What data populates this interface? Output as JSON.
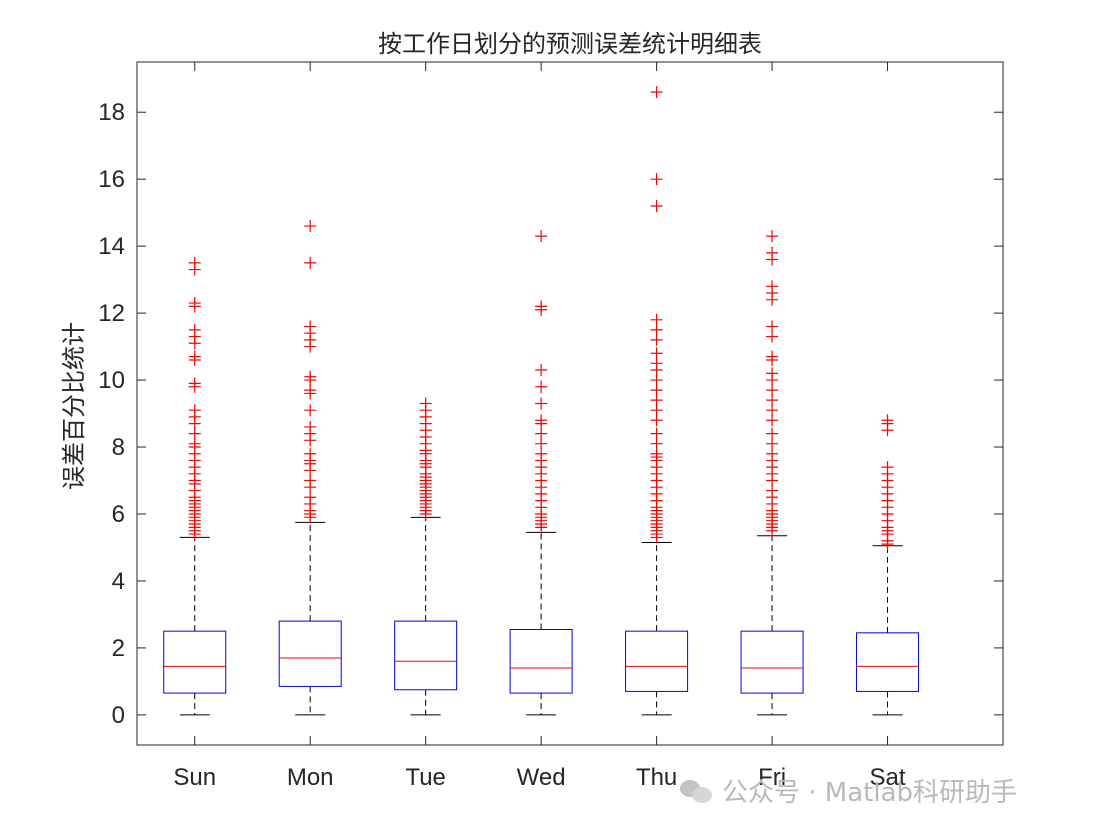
{
  "chart_data": {
    "type": "box",
    "title": "按工作日划分的预测误差统计明细表",
    "xlabel": "",
    "ylabel": "误差百分比统计",
    "ylim": [
      -0.9,
      19.5
    ],
    "yticks": [
      0,
      2,
      4,
      6,
      8,
      10,
      12,
      14,
      16,
      18
    ],
    "categories": [
      "Sun",
      "Mon",
      "Tue",
      "Wed",
      "Thu",
      "Fri",
      "Sat"
    ],
    "grid": false,
    "colors": {
      "box": "#0000ff",
      "median": "#ff0000",
      "whisker": "#000000",
      "outlier": "#ff0000",
      "axis": "#262626"
    },
    "boxes": [
      {
        "category": "Sun",
        "min": 0,
        "q1": 0.65,
        "median": 1.45,
        "q3": 2.5,
        "whisker_high": 5.3,
        "outliers": [
          5.4,
          5.5,
          5.6,
          5.7,
          5.8,
          5.9,
          6.0,
          6.1,
          6.2,
          6.3,
          6.4,
          6.5,
          6.7,
          6.9,
          7.0,
          7.2,
          7.4,
          7.6,
          7.8,
          8.0,
          8.1,
          8.4,
          8.7,
          8.9,
          9.1,
          9.8,
          9.9,
          10.6,
          10.7,
          11.1,
          11.3,
          11.5,
          12.2,
          12.3,
          13.3,
          13.5
        ]
      },
      {
        "category": "Mon",
        "min": 0,
        "q1": 0.85,
        "median": 1.7,
        "q3": 2.8,
        "whisker_high": 5.75,
        "outliers": [
          5.9,
          6.0,
          6.1,
          6.3,
          6.5,
          6.8,
          7.0,
          7.3,
          7.5,
          7.6,
          7.8,
          8.2,
          8.4,
          8.6,
          9.1,
          9.6,
          9.7,
          10.0,
          10.1,
          11.0,
          11.2,
          11.4,
          11.6,
          13.5,
          14.6
        ]
      },
      {
        "category": "Tue",
        "min": 0,
        "q1": 0.75,
        "median": 1.6,
        "q3": 2.8,
        "whisker_high": 5.9,
        "outliers": [
          6.0,
          6.1,
          6.2,
          6.3,
          6.4,
          6.5,
          6.6,
          6.7,
          6.8,
          6.9,
          7.0,
          7.1,
          7.2,
          7.4,
          7.5,
          7.6,
          7.8,
          7.9,
          8.1,
          8.3,
          8.5,
          8.7,
          8.9,
          9.1,
          9.3
        ]
      },
      {
        "category": "Wed",
        "min": 0,
        "q1": 0.65,
        "median": 1.4,
        "q3": 2.55,
        "whisker_high": 5.45,
        "outliers": [
          5.6,
          5.7,
          5.8,
          5.9,
          6.0,
          6.2,
          6.4,
          6.6,
          6.8,
          7.0,
          7.2,
          7.4,
          7.6,
          7.8,
          8.1,
          8.4,
          8.7,
          8.8,
          9.3,
          9.8,
          10.3,
          12.1,
          12.2,
          14.3
        ]
      },
      {
        "category": "Thu",
        "min": 0,
        "q1": 0.7,
        "median": 1.45,
        "q3": 2.5,
        "whisker_high": 5.15,
        "outliers": [
          5.3,
          5.4,
          5.5,
          5.6,
          5.7,
          5.8,
          5.9,
          6.0,
          6.1,
          6.2,
          6.4,
          6.6,
          6.8,
          7.0,
          7.2,
          7.4,
          7.6,
          7.7,
          7.8,
          8.1,
          8.4,
          8.8,
          9.1,
          9.4,
          9.7,
          10.0,
          10.3,
          10.5,
          10.8,
          11.2,
          11.5,
          11.8,
          15.2,
          16.0,
          18.6
        ]
      },
      {
        "category": "Fri",
        "min": 0,
        "q1": 0.65,
        "median": 1.4,
        "q3": 2.5,
        "whisker_high": 5.35,
        "outliers": [
          5.5,
          5.6,
          5.7,
          5.8,
          5.9,
          6.0,
          6.1,
          6.3,
          6.5,
          6.7,
          7.0,
          7.2,
          7.4,
          7.6,
          7.8,
          8.1,
          8.4,
          8.8,
          9.1,
          9.4,
          9.7,
          10.0,
          10.2,
          10.6,
          10.7,
          11.3,
          11.6,
          12.4,
          12.6,
          12.8,
          13.6,
          13.8,
          14.3
        ]
      },
      {
        "category": "Sat",
        "min": 0,
        "q1": 0.7,
        "median": 1.45,
        "q3": 2.45,
        "whisker_high": 5.05,
        "outliers": [
          5.1,
          5.2,
          5.4,
          5.5,
          5.6,
          5.8,
          6.0,
          6.2,
          6.4,
          6.6,
          6.8,
          7.0,
          7.2,
          7.4,
          8.5,
          8.7,
          8.8
        ]
      }
    ]
  },
  "watermark": {
    "text": "公众号 · Matlab科研助手"
  }
}
